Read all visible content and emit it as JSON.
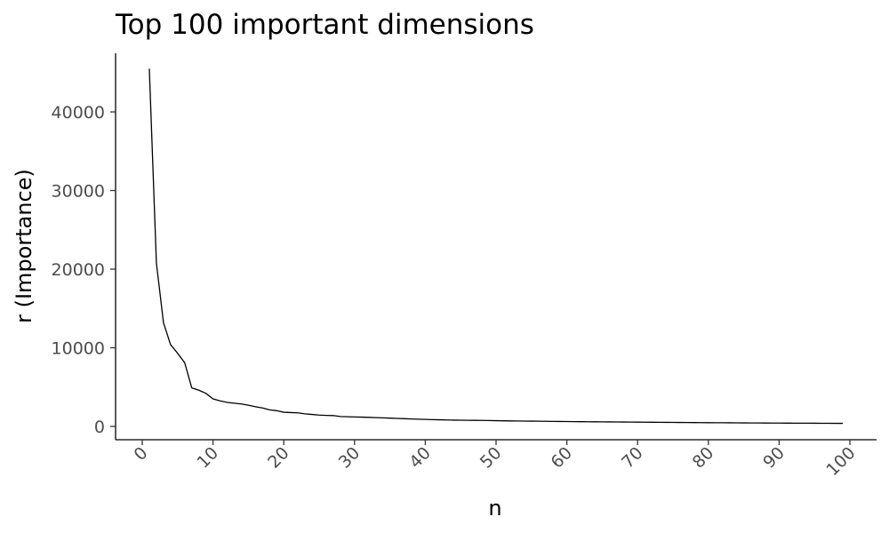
{
  "chart_data": {
    "type": "line",
    "title": "Top 100 important dimensions",
    "xlabel": "n",
    "ylabel": "r (Importance)",
    "xlim": [
      0,
      100
    ],
    "ylim": [
      0,
      45500
    ],
    "xticks": [
      0,
      10,
      20,
      30,
      40,
      50,
      60,
      70,
      80,
      90,
      100
    ],
    "xtick_labels": [
      "0",
      "10",
      "20",
      "30",
      "40",
      "50",
      "60",
      "70",
      "80",
      "90",
      "100"
    ],
    "yticks": [
      0,
      10000,
      20000,
      30000,
      40000
    ],
    "ytick_labels": [
      "0",
      "10000",
      "20000",
      "30000",
      "40000"
    ],
    "grid": false,
    "legend": "none",
    "line_color": "#000000",
    "series": [
      {
        "x": [
          1,
          2,
          3,
          4,
          5,
          6,
          7,
          8,
          9,
          10,
          11,
          12,
          13,
          14,
          15,
          16,
          17,
          18,
          19,
          20,
          21,
          22,
          23,
          24,
          25,
          26,
          27,
          28,
          29,
          30,
          31,
          32,
          33,
          34,
          35,
          36,
          37,
          38,
          39,
          40,
          41,
          42,
          43,
          44,
          45,
          46,
          47,
          48,
          49,
          50,
          51,
          52,
          53,
          54,
          55,
          56,
          57,
          58,
          59,
          60,
          61,
          62,
          63,
          64,
          65,
          66,
          67,
          68,
          69,
          70,
          71,
          72,
          73,
          74,
          75,
          76,
          77,
          78,
          79,
          80,
          81,
          82,
          83,
          84,
          85,
          86,
          87,
          88,
          89,
          90,
          91,
          92,
          93,
          94,
          95,
          96,
          97,
          98,
          99
        ],
        "y": [
          45500,
          20800,
          13200,
          10400,
          9300,
          8100,
          4900,
          4600,
          4200,
          3500,
          3250,
          3050,
          2950,
          2850,
          2700,
          2500,
          2350,
          2100,
          2000,
          1800,
          1760,
          1720,
          1600,
          1520,
          1440,
          1400,
          1380,
          1260,
          1230,
          1200,
          1180,
          1150,
          1120,
          1090,
          1050,
          1020,
          980,
          950,
          920,
          890,
          860,
          840,
          820,
          800,
          790,
          780,
          770,
          760,
          745,
          730,
          715,
          700,
          690,
          680,
          670,
          660,
          650,
          640,
          630,
          620,
          610,
          600,
          592,
          585,
          578,
          571,
          564,
          557,
          550,
          543,
          536,
          529,
          522,
          515,
          508,
          501,
          494,
          487,
          480,
          474,
          468,
          462,
          456,
          450,
          445,
          440,
          435,
          430,
          426,
          422,
          418,
          414,
          410,
          406,
          402,
          398,
          394,
          390,
          386
        ]
      }
    ]
  }
}
